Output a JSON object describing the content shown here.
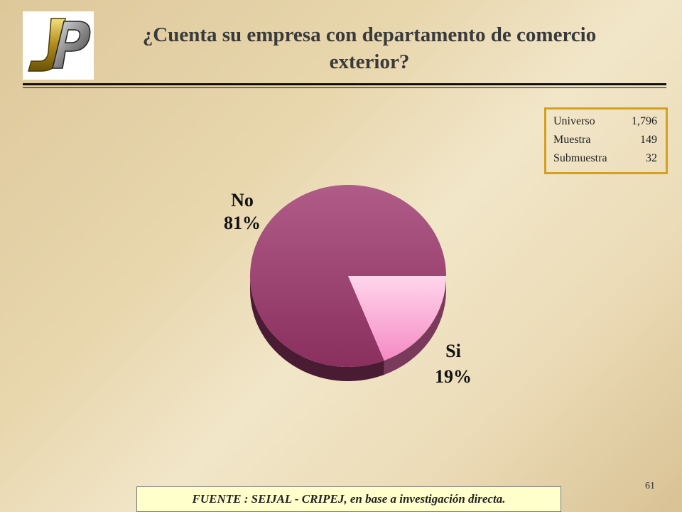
{
  "slide": {
    "title_line1": "¿Cuenta su empresa con departamento de comercio",
    "title_line2": "exterior?",
    "page_number": "61",
    "footer": "FUENTE :  SEIJAL - CRIPEJ,  en base a investigación directa."
  },
  "stats": [
    {
      "label": "Universo",
      "value": "1,796"
    },
    {
      "label": "Muestra",
      "value": "149"
    },
    {
      "label": "Submuestra",
      "value": "32"
    }
  ],
  "colors": {
    "no_slice": "#a04a78",
    "si_slice": "#ffc0e0",
    "border_box": "#d4a020"
  },
  "chart_data": {
    "type": "pie",
    "title": "¿Cuenta su empresa con departamento de comercio exterior?",
    "slices": [
      {
        "label": "No",
        "value": 81,
        "value_label": "81%"
      },
      {
        "label": "Si",
        "value": 19,
        "value_label": "19%"
      }
    ]
  }
}
